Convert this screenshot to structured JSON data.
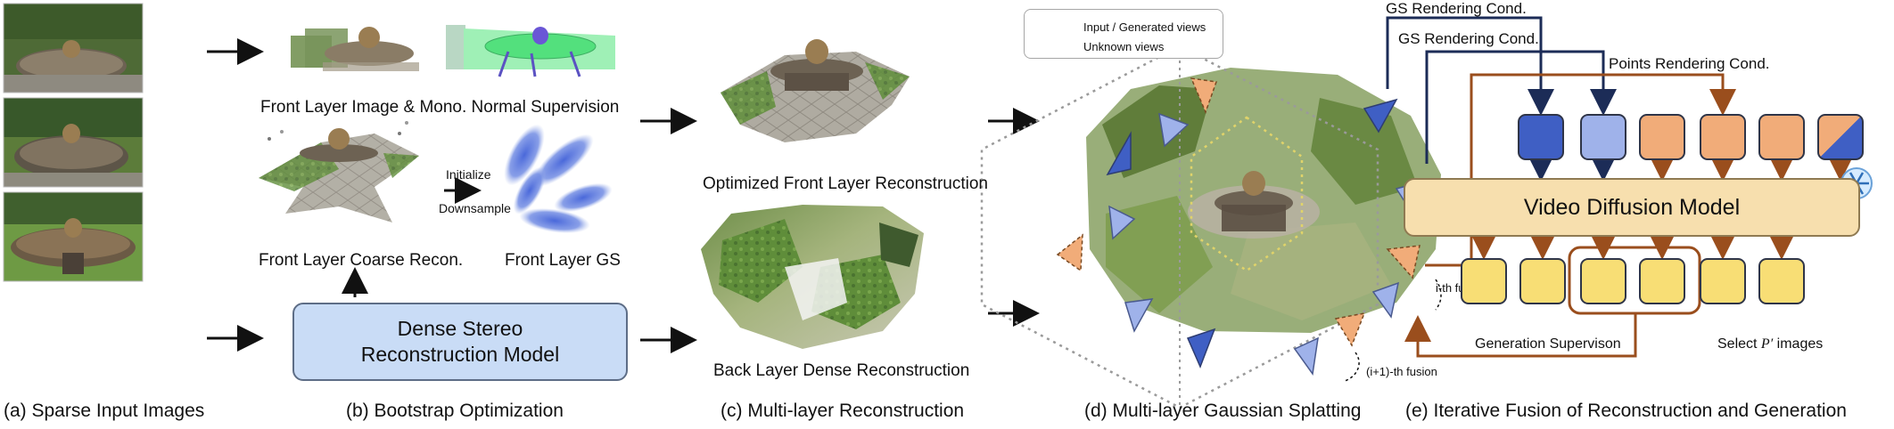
{
  "captions": {
    "a": "(a) Sparse Input Images",
    "b": "(b) Bootstrap Optimization",
    "c": "(c) Multi-layer Reconstruction",
    "d": "(d) Multi-layer Gaussian Splatting",
    "e": "(e) Iterative Fusion of Reconstruction and Generation"
  },
  "bootstrap": {
    "front_supervision": "Front Layer Image & Mono. Normal Supervision",
    "initialize": "Initialize",
    "downsample": "Downsample",
    "coarse_recon": "Front Layer Coarse Recon.",
    "front_gs": "Front Layer GS",
    "model_line1": "Dense Stereo",
    "model_line2": "Reconstruction Model"
  },
  "multilayer": {
    "optimized_front": "Optimized Front Layer Reconstruction",
    "back_dense": "Back Layer Dense Reconstruction"
  },
  "legend": {
    "input_views": "Input / Generated views",
    "unknown_views": "Unknown views"
  },
  "fusion": {
    "gs_cond_1": "GS Rendering Cond.",
    "gs_cond_2": "GS Rendering Cond.",
    "points_cond": "Points Rendering Cond.",
    "model": "Video Diffusion Model",
    "ith_fusion": "i-th fusion",
    "i1th_fusion": "(i+1)-th fusion",
    "generation_supervision": "Generation Supervison",
    "select_prefix": "Select",
    "select_symbol": "P′",
    "select_suffix": "images"
  },
  "colors": {
    "dark_blue": "#3f5fc4",
    "light_blue": "#9fb2ea",
    "orange": "#f1ac79",
    "yellow": "#f8de75",
    "brown": "#9a4e1d",
    "navy": "#1c2c57",
    "box_blue": "#c9dcf6",
    "vdm_fill": "#f7dfae"
  }
}
